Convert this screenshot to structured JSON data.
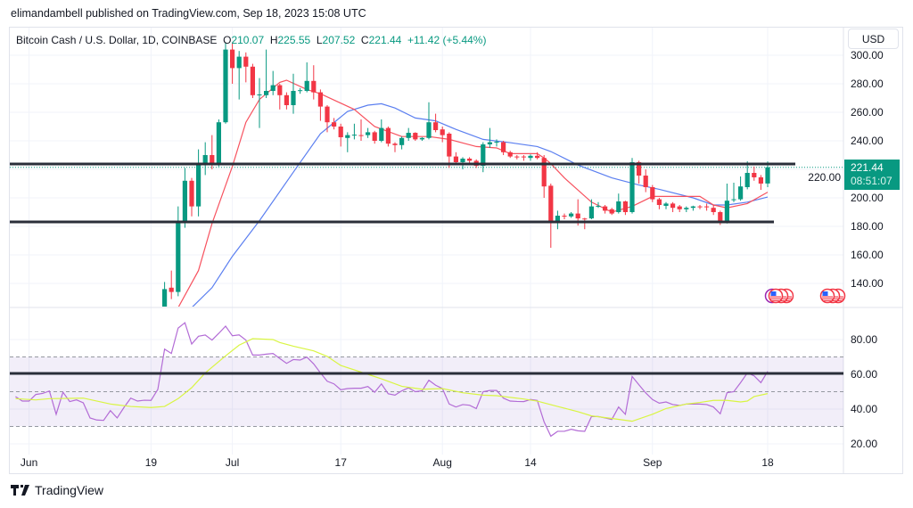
{
  "header": {
    "published": "elimandambell published on TradingView.com, Sep 18, 2023 15:08 UTC"
  },
  "legend": {
    "symbol": "Bitcoin Cash / U.S. Dollar, 1D, COINBASE",
    "o_label": "O",
    "o": "210.07",
    "h_label": "H",
    "h": "225.55",
    "l_label": "L",
    "l": "207.52",
    "c_label": "C",
    "c": "221.44",
    "change": "+11.42 (+5.44%)"
  },
  "currency_button": "USD",
  "last_price": {
    "price": "221.44",
    "countdown": "08:51:07"
  },
  "footer": {
    "brand": "TradingView"
  },
  "colors": {
    "up": "#089981",
    "down": "#f23645",
    "ma_fast": "#f7525f",
    "ma_slow": "#5b7ff0",
    "rsi": "#b36cd6",
    "rsi_ma": "#d9f542",
    "level_line": "#2a2e39",
    "rsi_band": "#7e57c2"
  },
  "icons": [
    "us-flag-event-icon",
    "us-flag-event-icon"
  ],
  "chart_data": [
    {
      "type": "candlestick",
      "title": "Bitcoin Cash / U.S. Dollar, 1D, COINBASE",
      "ylim": [
        123,
        320
      ],
      "yticks": [
        "300.00",
        "280.00",
        "260.00",
        "240.00",
        "220.00",
        "200.00",
        "180.00",
        "160.00",
        "140.00"
      ],
      "ytick_values": [
        300,
        280,
        260,
        240,
        220,
        200,
        180,
        160,
        140
      ],
      "xticks": [
        {
          "label": "Jun",
          "date": "2023-06-01"
        },
        {
          "label": "19",
          "date": "2023-06-19"
        },
        {
          "label": "Jul",
          "date": "2023-07-01"
        },
        {
          "label": "17",
          "date": "2023-07-17"
        },
        {
          "label": "Aug",
          "date": "2023-08-01"
        },
        {
          "label": "14",
          "date": "2023-08-14"
        },
        {
          "label": "Sep",
          "date": "2023-09-01"
        },
        {
          "label": "18",
          "date": "2023-09-18"
        }
      ],
      "grid": true,
      "candles": {
        "from": "2023-06-21",
        "to": "2023-09-18",
        "ohlc": [
          [
            123,
            141,
            118,
            136
          ],
          [
            137,
            149,
            129,
            134
          ],
          [
            134,
            194,
            131,
            183
          ],
          [
            183,
            221,
            179,
            212
          ],
          [
            212,
            214,
            187,
            194
          ],
          [
            194,
            234,
            187,
            224
          ],
          [
            224,
            239,
            216,
            230
          ],
          [
            230,
            244,
            220,
            224
          ],
          [
            224,
            255,
            222,
            253
          ],
          [
            253,
            309,
            252,
            304
          ],
          [
            304,
            309,
            280,
            291
          ],
          [
            291,
            303,
            269,
            299
          ],
          [
            299,
            302,
            281,
            292
          ],
          [
            292,
            294,
            270,
            272
          ],
          [
            272,
            284,
            249,
            272.5
          ],
          [
            272,
            304,
            270,
            275
          ],
          [
            275,
            289,
            272,
            279
          ],
          [
            279,
            280,
            262,
            272
          ],
          [
            272,
            274,
            262,
            265
          ],
          [
            265,
            287,
            259,
            275
          ],
          [
            275,
            277,
            273,
            275.5
          ],
          [
            275,
            295,
            274,
            282
          ],
          [
            282,
            293,
            269,
            274
          ],
          [
            274,
            276,
            254,
            264
          ],
          [
            264,
            265,
            246,
            253
          ],
          [
            253,
            256,
            248,
            250
          ],
          [
            250,
            252,
            236,
            242.5
          ],
          [
            242,
            246,
            232,
            244
          ],
          [
            244,
            252,
            241,
            244.3
          ],
          [
            244,
            255,
            240,
            243.7
          ],
          [
            244,
            249,
            242,
            246
          ],
          [
            246,
            247,
            238,
            240
          ],
          [
            240,
            255,
            239,
            249
          ],
          [
            249,
            250,
            236,
            238
          ],
          [
            238,
            239,
            232,
            237
          ],
          [
            237,
            243,
            234,
            242
          ],
          [
            242,
            249,
            240,
            245.6
          ],
          [
            245.6,
            246,
            240,
            241
          ],
          [
            241,
            242.5,
            240,
            242
          ],
          [
            242,
            267,
            241,
            253
          ],
          [
            253,
            259,
            246,
            247.5
          ],
          [
            248,
            250,
            239,
            244
          ],
          [
            245,
            246,
            221,
            229
          ],
          [
            229,
            232,
            224,
            225
          ],
          [
            225,
            228.5,
            220,
            227.5
          ],
          [
            227.5,
            228.5,
            224.5,
            226
          ],
          [
            226,
            227,
            221,
            222.5
          ],
          [
            222.5,
            239,
            218,
            237.5
          ],
          [
            237.5,
            249,
            235,
            239
          ],
          [
            239,
            241,
            236,
            239.4
          ],
          [
            239,
            240,
            230,
            232
          ],
          [
            232,
            233,
            228,
            229
          ],
          [
            229,
            230,
            227,
            228.7
          ],
          [
            229,
            230,
            226,
            228.6
          ],
          [
            228,
            230.5,
            226,
            229.5
          ],
          [
            229.5,
            232,
            227,
            228
          ],
          [
            228,
            230,
            200,
            208
          ],
          [
            208.5,
            210,
            165,
            184
          ],
          [
            184,
            191,
            178,
            187.5
          ],
          [
            187.5,
            189,
            185,
            187.2
          ],
          [
            187,
            190,
            186,
            189
          ],
          [
            189,
            199,
            180.6,
            185.6
          ],
          [
            185.5,
            186,
            178,
            185
          ],
          [
            185.6,
            199,
            185,
            194
          ],
          [
            194,
            197,
            193,
            194.4
          ],
          [
            194,
            195,
            189,
            191
          ],
          [
            192,
            193,
            188,
            189
          ],
          [
            190,
            203,
            189,
            197.5
          ],
          [
            197.5,
            198,
            188,
            190
          ],
          [
            190,
            228,
            189,
            225
          ],
          [
            225,
            226,
            210,
            215.6
          ],
          [
            215.6,
            220,
            204,
            207.5
          ],
          [
            207.5,
            209,
            197,
            199
          ],
          [
            199,
            200,
            192,
            195
          ],
          [
            194.4,
            197,
            192,
            196
          ],
          [
            196,
            197,
            190,
            193
          ],
          [
            194,
            195,
            190,
            192
          ],
          [
            192,
            194,
            190,
            193
          ],
          [
            193,
            194.5,
            191,
            194
          ],
          [
            194,
            195,
            192,
            193.6
          ],
          [
            194,
            196,
            191,
            193.7
          ],
          [
            193,
            195,
            188,
            190
          ],
          [
            190,
            191,
            181,
            183
          ],
          [
            183,
            210,
            182,
            198
          ],
          [
            198.5,
            210.6,
            197,
            199
          ],
          [
            199,
            215,
            198,
            208
          ],
          [
            207.5,
            225.6,
            206,
            217.5
          ],
          [
            217.5,
            222,
            212,
            214.4
          ],
          [
            214.4,
            216,
            205.6,
            210
          ],
          [
            210.07,
            225.55,
            207.52,
            221.44
          ]
        ]
      },
      "ma_fast": [
        [
          "2023-06-23",
          123
        ],
        [
          "2023-06-26",
          149
        ],
        [
          "2023-06-28",
          182
        ],
        [
          "2023-07-01",
          222
        ],
        [
          "2023-07-03",
          253
        ],
        [
          "2023-07-05",
          269
        ],
        [
          "2023-07-08",
          281
        ],
        [
          "2023-07-09",
          282.5
        ],
        [
          "2023-07-12",
          276
        ],
        [
          "2023-07-14",
          273
        ],
        [
          "2023-07-19",
          262
        ],
        [
          "2023-07-22",
          250
        ],
        [
          "2023-07-26",
          243
        ],
        [
          "2023-07-30",
          243
        ],
        [
          "2023-08-02",
          241
        ],
        [
          "2023-08-06",
          236
        ],
        [
          "2023-08-09",
          235
        ],
        [
          "2023-08-11",
          231
        ],
        [
          "2023-08-15",
          231
        ],
        [
          "2023-08-16",
          228
        ],
        [
          "2023-08-17",
          224
        ],
        [
          "2023-08-19",
          214
        ],
        [
          "2023-08-23",
          197
        ],
        [
          "2023-08-26",
          190
        ],
        [
          "2023-08-29",
          194
        ],
        [
          "2023-09-01",
          201
        ],
        [
          "2023-09-08",
          201
        ],
        [
          "2023-09-10",
          195
        ],
        [
          "2023-09-12",
          193
        ],
        [
          "2023-09-15",
          196
        ],
        [
          "2023-09-18",
          204
        ]
      ],
      "ma_slow": [
        [
          "2023-06-25",
          123
        ],
        [
          "2023-06-28",
          137
        ],
        [
          "2023-07-01",
          159
        ],
        [
          "2023-07-05",
          184
        ],
        [
          "2023-07-10",
          218
        ],
        [
          "2023-07-14",
          245
        ],
        [
          "2023-07-18",
          260.6
        ],
        [
          "2023-07-21",
          265
        ],
        [
          "2023-07-23",
          266
        ],
        [
          "2023-07-25",
          263
        ],
        [
          "2023-07-28",
          256
        ],
        [
          "2023-07-31",
          254
        ],
        [
          "2023-08-03",
          248
        ],
        [
          "2023-08-07",
          241
        ],
        [
          "2023-08-11",
          238.7
        ],
        [
          "2023-08-15",
          236
        ],
        [
          "2023-08-17",
          232.5
        ],
        [
          "2023-08-21",
          223
        ],
        [
          "2023-08-26",
          214
        ],
        [
          "2023-08-30",
          209
        ],
        [
          "2023-09-02",
          206
        ],
        [
          "2023-09-07",
          200
        ],
        [
          "2023-09-10",
          195
        ],
        [
          "2023-09-12",
          195
        ],
        [
          "2023-09-15",
          197
        ],
        [
          "2023-09-18",
          200.6
        ]
      ],
      "horizontal_lines": [
        223.75,
        183.1
      ],
      "last_price": 221.44
    },
    {
      "type": "line",
      "ylim": [
        15,
        97
      ],
      "yticks": [
        "80.00",
        "60.00",
        "40.00",
        "20.00"
      ],
      "ytick_values": [
        80,
        60,
        40,
        20
      ],
      "band": [
        30,
        70
      ],
      "midline": 50,
      "horizontal_line": 60.5,
      "rsi": {
        "from": "2023-05-30",
        "to": "2023-09-18",
        "values": [
          47.2,
          44.6,
          44.6,
          48.4,
          49,
          50.4,
          37,
          49.7,
          44.3,
          45.3,
          43.6,
          34.9,
          33.7,
          33.5,
          39.1,
          34.9,
          40.9,
          46.3,
          44.6,
          45.1,
          45,
          51.3,
          74.5,
          72,
          86.6,
          89.7,
          77.4,
          81.9,
          82.6,
          79.7,
          83.6,
          87.7,
          82.2,
          82.7,
          79.7,
          71.1,
          71.1,
          71.6,
          72,
          69.1,
          66.3,
          68.5,
          68.2,
          69.9,
          66,
          60.8,
          56,
          54.5,
          51.1,
          51.8,
          52,
          52,
          53,
          49.7,
          54.5,
          48.8,
          48,
          50.5,
          52.2,
          50,
          50.5,
          56.6,
          53.7,
          51.8,
          42.9,
          41.2,
          42.6,
          42.2,
          40.3,
          50,
          50.7,
          50.7,
          46.3,
          44.6,
          44.4,
          44.3,
          45.5,
          45,
          32.7,
          24.4,
          27.2,
          27.2,
          28.4,
          27.5,
          27.2,
          35.7,
          35.7,
          34.9,
          34,
          41.2,
          37,
          58.8,
          54,
          49.3,
          45.5,
          43.4,
          44.1,
          42.6,
          42.1,
          42.9,
          42.9,
          42.9,
          42.6,
          41.2,
          37.3,
          49.4,
          50,
          55.2,
          60.8,
          59.1,
          55.2,
          61.7
        ]
      },
      "rsi_ma": [
        [
          "2023-05-30",
          46
        ],
        [
          "2023-06-02",
          45.3
        ],
        [
          "2023-06-04",
          46
        ],
        [
          "2023-06-09",
          46.3
        ],
        [
          "2023-06-13",
          42.9
        ],
        [
          "2023-06-16",
          41.5
        ],
        [
          "2023-06-19",
          40.9
        ],
        [
          "2023-06-21",
          41.5
        ],
        [
          "2023-06-23",
          46
        ],
        [
          "2023-06-25",
          52.3
        ],
        [
          "2023-06-27",
          60.8
        ],
        [
          "2023-06-30",
          70.6
        ],
        [
          "2023-07-02",
          76.8
        ],
        [
          "2023-07-04",
          80.5
        ],
        [
          "2023-07-07",
          80
        ],
        [
          "2023-07-08",
          78.3
        ],
        [
          "2023-07-10",
          76.2
        ],
        [
          "2023-07-13",
          73.5
        ],
        [
          "2023-07-15",
          70.3
        ],
        [
          "2023-07-17",
          65.1
        ],
        [
          "2023-07-21",
          60
        ],
        [
          "2023-07-23",
          57.4
        ],
        [
          "2023-07-26",
          53.1
        ],
        [
          "2023-07-29",
          51.4
        ],
        [
          "2023-08-01",
          51.8
        ],
        [
          "2023-08-04",
          49.4
        ],
        [
          "2023-08-07",
          48
        ],
        [
          "2023-08-09",
          47.7
        ],
        [
          "2023-08-13",
          45.8
        ],
        [
          "2023-08-15",
          44.6
        ],
        [
          "2023-08-18",
          41.5
        ],
        [
          "2023-08-21",
          38.5
        ],
        [
          "2023-08-23",
          36.1
        ],
        [
          "2023-08-26",
          34.6
        ],
        [
          "2023-08-29",
          33
        ],
        [
          "2023-09-01",
          37
        ],
        [
          "2023-09-03",
          40.3
        ],
        [
          "2023-09-06",
          42.9
        ],
        [
          "2023-09-08",
          43.8
        ],
        [
          "2023-09-10",
          45
        ],
        [
          "2023-09-12",
          45
        ],
        [
          "2023-09-14",
          44.1
        ],
        [
          "2023-09-15",
          44.6
        ],
        [
          "2023-09-16",
          47.2
        ],
        [
          "2023-09-18",
          48.9
        ]
      ]
    }
  ]
}
